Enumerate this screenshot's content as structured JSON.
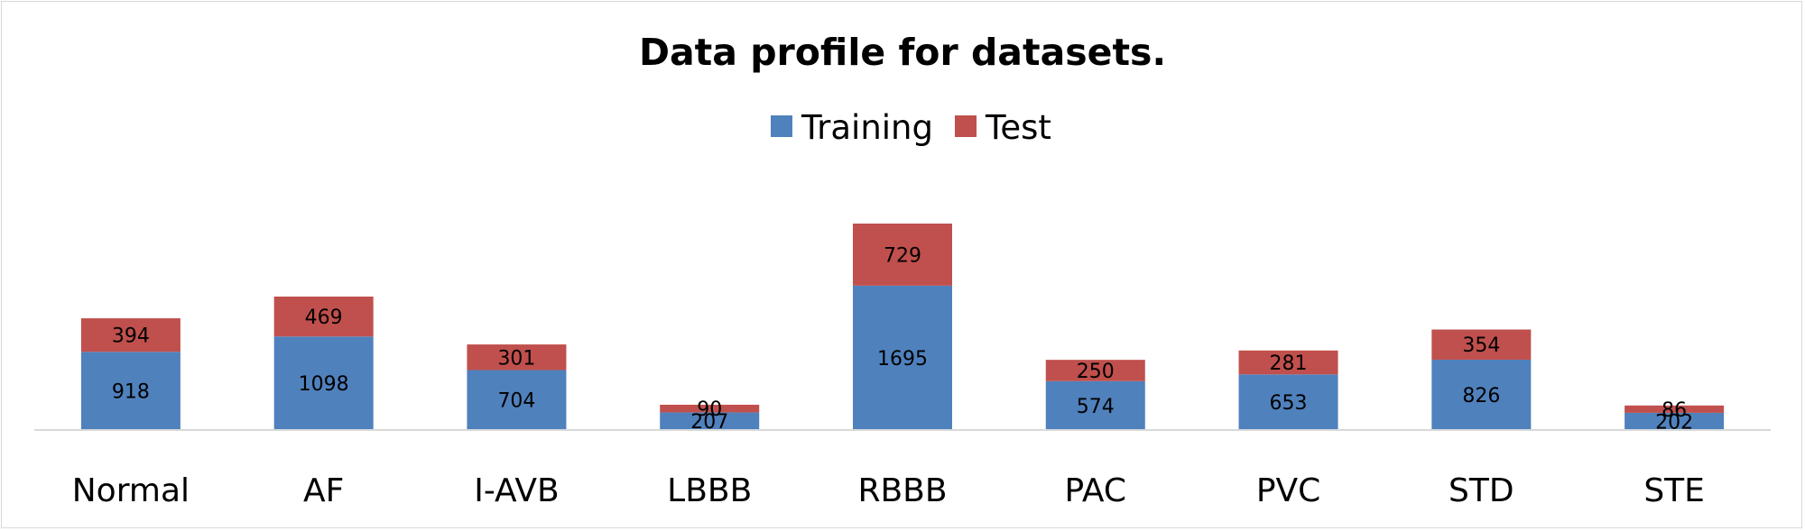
{
  "chart_data": {
    "type": "bar",
    "stacked": true,
    "title": "Data profile for datasets.",
    "categories": [
      "Normal",
      "AF",
      "I-AVB",
      "LBBB",
      "RBBB",
      "PAC",
      "PVC",
      "STD",
      "STE"
    ],
    "series": [
      {
        "name": "Training",
        "values": [
          918,
          1098,
          704,
          207,
          1695,
          574,
          653,
          826,
          202
        ],
        "color": "#4f81bd"
      },
      {
        "name": "Test",
        "values": [
          394,
          469,
          301,
          90,
          729,
          250,
          281,
          354,
          86
        ],
        "color": "#c0504d"
      }
    ],
    "ylim": [
      0,
      2424
    ],
    "legend_position": "top-center",
    "grid": false,
    "data_labels": true,
    "axis_color": "#d9d9d9"
  }
}
